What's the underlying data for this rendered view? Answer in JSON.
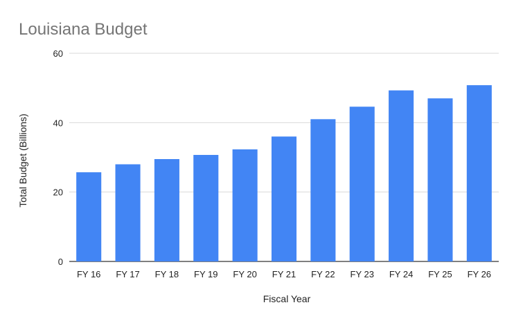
{
  "chart_data": {
    "type": "bar",
    "title": "Louisiana Budget",
    "xlabel": "Fiscal Year",
    "ylabel": "Total Budget (Billions)",
    "categories": [
      "FY 16",
      "FY 17",
      "FY 18",
      "FY 19",
      "FY 20",
      "FY 21",
      "FY 22",
      "FY 23",
      "FY 24",
      "FY 25",
      "FY 26"
    ],
    "series": [
      {
        "values": [
          25.7,
          28.0,
          29.5,
          30.7,
          32.3,
          36.0,
          41.0,
          44.6,
          49.3,
          47.0,
          50.8
        ]
      }
    ],
    "ylim": [
      0,
      60
    ],
    "yticks": [
      0,
      20,
      40,
      60
    ],
    "grid": true,
    "bar_color": "#4285f4"
  }
}
